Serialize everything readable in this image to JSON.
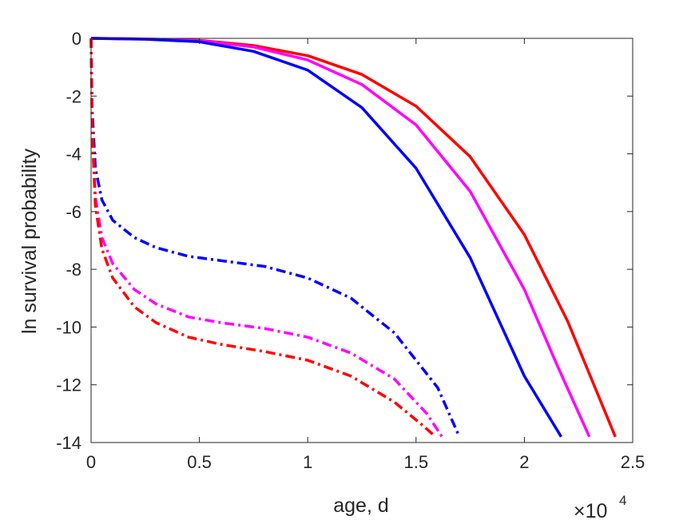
{
  "chart_data": {
    "type": "line",
    "title": "",
    "xlabel": "age, d",
    "ylabel": "ln survival probability",
    "x_exponent_label": {
      "base": "×10",
      "power": "4"
    },
    "xlim": [
      0,
      2.5
    ],
    "ylim": [
      -14,
      0
    ],
    "xticks": [
      0,
      0.5,
      1,
      1.5,
      2,
      2.5
    ],
    "xtick_labels": [
      "0",
      "0.5",
      "1",
      "1.5",
      "2",
      "2.5"
    ],
    "yticks": [
      -14,
      -12,
      -10,
      -8,
      -6,
      -4,
      -2,
      0
    ],
    "ytick_labels": [
      "-14",
      "-12",
      "-10",
      "-8",
      "-6",
      "-4",
      "-2",
      "0"
    ],
    "grid": false,
    "legend": "none",
    "series": [
      {
        "color": "#ff0000",
        "style": "solid",
        "x": [
          0,
          0.25,
          0.5,
          0.75,
          1.0,
          1.25,
          1.5,
          1.75,
          2.0,
          2.2,
          2.42
        ],
        "y": [
          0,
          -0.02,
          -0.07,
          -0.25,
          -0.6,
          -1.25,
          -2.35,
          -4.1,
          -6.8,
          -9.8,
          -13.8
        ]
      },
      {
        "color": "#ff00ff",
        "style": "solid",
        "x": [
          0,
          0.25,
          0.5,
          0.75,
          1.0,
          1.25,
          1.5,
          1.75,
          2.0,
          2.15,
          2.3
        ],
        "y": [
          0,
          -0.02,
          -0.08,
          -0.3,
          -0.75,
          -1.6,
          -3.0,
          -5.3,
          -8.7,
          -11.3,
          -13.8
        ]
      },
      {
        "color": "#0000ff",
        "style": "solid",
        "x": [
          0,
          0.25,
          0.5,
          0.75,
          1.0,
          1.25,
          1.5,
          1.75,
          2.0,
          2.17
        ],
        "y": [
          0,
          -0.03,
          -0.12,
          -0.45,
          -1.1,
          -2.4,
          -4.5,
          -7.6,
          -11.7,
          -13.8
        ]
      },
      {
        "color": "#0000ff",
        "style": "dashdot",
        "x": [
          0,
          0.005,
          0.02,
          0.05,
          0.1,
          0.2,
          0.3,
          0.45,
          0.6,
          0.8,
          1.0,
          1.2,
          1.4,
          1.6,
          1.7
        ],
        "y": [
          0,
          -2.5,
          -4.5,
          -5.6,
          -6.3,
          -6.9,
          -7.25,
          -7.55,
          -7.7,
          -7.9,
          -8.3,
          -9.0,
          -10.2,
          -12.1,
          -13.8
        ]
      },
      {
        "color": "#ff00ff",
        "style": "dashdot",
        "x": [
          0,
          0.005,
          0.02,
          0.05,
          0.1,
          0.2,
          0.3,
          0.45,
          0.6,
          0.8,
          1.0,
          1.2,
          1.4,
          1.55,
          1.62
        ],
        "y": [
          0,
          -3.0,
          -5.5,
          -6.9,
          -7.8,
          -8.7,
          -9.2,
          -9.65,
          -9.85,
          -10.05,
          -10.35,
          -10.9,
          -11.8,
          -13.0,
          -13.8
        ]
      },
      {
        "color": "#ff0000",
        "style": "dashdot",
        "x": [
          0,
          0.005,
          0.02,
          0.05,
          0.1,
          0.2,
          0.3,
          0.45,
          0.6,
          0.8,
          1.0,
          1.2,
          1.4,
          1.53,
          1.59
        ],
        "y": [
          0,
          -3.2,
          -5.8,
          -7.3,
          -8.3,
          -9.3,
          -9.85,
          -10.35,
          -10.6,
          -10.85,
          -11.15,
          -11.7,
          -12.6,
          -13.4,
          -13.8
        ]
      }
    ]
  }
}
